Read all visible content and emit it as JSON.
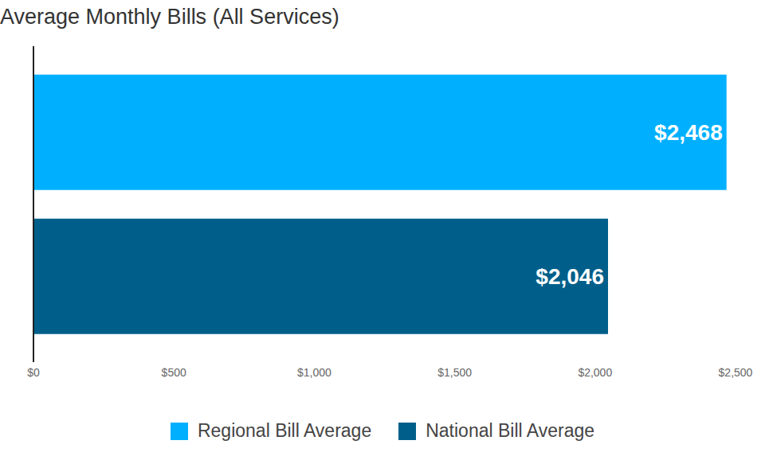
{
  "chart_data": {
    "type": "bar",
    "title": "Average Monthly Bills (All Services)",
    "orientation": "horizontal",
    "categories": [
      null
    ],
    "series": [
      {
        "name": "Regional Bill Average",
        "color": "#00b0ff",
        "values": [
          2468
        ],
        "value_labels": [
          "$2,468"
        ]
      },
      {
        "name": "National Bill Average",
        "color": "#005f8a",
        "values": [
          2046
        ],
        "value_labels": [
          "$2,046"
        ]
      }
    ],
    "xlim": [
      0,
      2500
    ],
    "xticks": [
      {
        "value": 0,
        "label": "$0"
      },
      {
        "value": 500,
        "label": "$500"
      },
      {
        "value": 1000,
        "label": "$1,000"
      },
      {
        "value": 1500,
        "label": "$1,500"
      },
      {
        "value": 2000,
        "label": "$2,000"
      },
      {
        "value": 2500,
        "label": "$2,500"
      }
    ],
    "data_labels": true,
    "legend": "bottom",
    "grid": false
  }
}
